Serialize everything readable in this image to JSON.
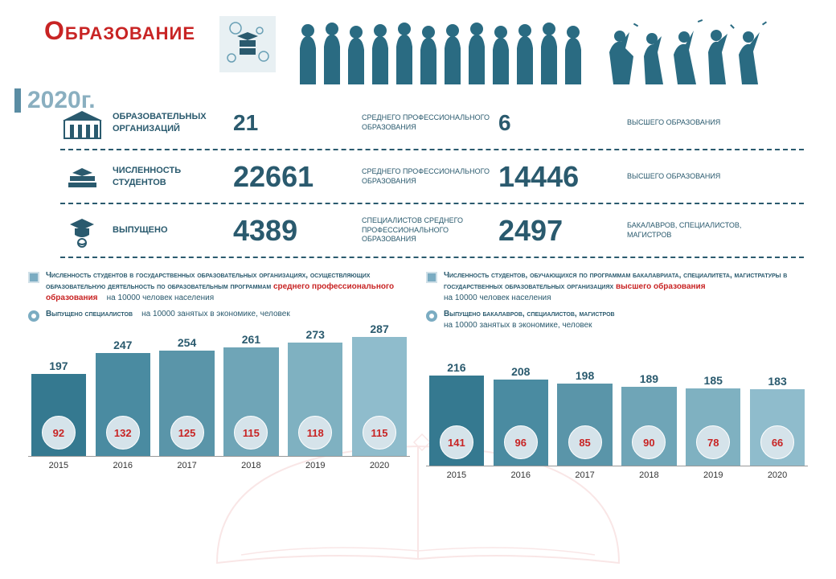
{
  "title": "Образование",
  "year": "2020г.",
  "colors": {
    "primary": "#2a5a6e",
    "accent": "#c82424",
    "light": "#8aafc0",
    "bar_dark": "#357990",
    "bar_mid": "#5a95a9",
    "bar_light": "#8fbccc",
    "circle_bg": "#d5e3ea",
    "background": "#ffffff"
  },
  "stats": [
    {
      "label": "ОБРАЗОВАТЕЛЬНЫХ ОРГАНИЗАЦИЙ",
      "left_value": "21",
      "left_desc": "СРЕДНЕГО ПРОФЕССИОНАЛЬНОГО ОБРАЗОВАНИЯ",
      "right_value": "6",
      "right_desc": "ВЫСШЕГО ОБРАЗОВАНИЯ"
    },
    {
      "label": "ЧИСЛЕННОСТЬ СТУДЕНТОВ",
      "left_value": "22661",
      "left_desc": "СРЕДНЕГО ПРОФЕССИОНАЛЬНОГО ОБРАЗОВАНИЯ",
      "right_value": "14446",
      "right_desc": "ВЫСШЕГО ОБРАЗОВАНИЯ"
    },
    {
      "label": "ВЫПУЩЕНО",
      "left_value": "4389",
      "left_desc": "СПЕЦИАЛИСТОВ СРЕДНЕГО ПРОФЕССИОНАЛЬНОГО ОБРАЗОВАНИЯ",
      "right_value": "2497",
      "right_desc": "БАКАЛАВРОВ, СПЕЦИАЛИСТОВ, МАГИСТРОВ"
    }
  ],
  "chart_left": {
    "type": "bar",
    "legend_bar_bold": "Численность студентов в государственных образовательных организациях, осуществляющих образовательную деятельность по образовательным программам",
    "legend_bar_red": "среднего профессионального образования",
    "legend_bar_tail": "на 10000 человек населения",
    "legend_circle_bold": "Выпущено специалистов",
    "legend_circle_tail": "на 10000 занятых в экономике, человек",
    "years": [
      "2015",
      "2016",
      "2017",
      "2018",
      "2019",
      "2020"
    ],
    "bar_values": [
      197,
      247,
      254,
      261,
      273,
      287
    ],
    "circle_values": [
      92,
      132,
      125,
      115,
      118,
      115
    ],
    "bar_colors": [
      "#357990",
      "#4a8ba1",
      "#5a95a9",
      "#6fa5b7",
      "#7fb1c1",
      "#8fbccc"
    ],
    "ylim": [
      0,
      300
    ]
  },
  "chart_right": {
    "type": "bar",
    "legend_bar_bold": "Численность студентов, обучающихся по программам бакалавриата, специалитета, магистратуры в государственных образовательных организациях",
    "legend_bar_red": "высшего образования",
    "legend_bar_tail": "на 10000 человек населения",
    "legend_circle_bold": "Выпущено бакалавров, специалистов, магистров",
    "legend_circle_tail": "на 10000 занятых в экономике, человек",
    "years": [
      "2015",
      "2016",
      "2017",
      "2018",
      "2019",
      "2020"
    ],
    "bar_values": [
      216,
      208,
      198,
      189,
      185,
      183
    ],
    "circle_values": [
      141,
      96,
      85,
      90,
      78,
      66
    ],
    "bar_colors": [
      "#357990",
      "#4a8ba1",
      "#5a95a9",
      "#6fa5b7",
      "#7fb1c1",
      "#8fbccc"
    ],
    "ylim": [
      0,
      300
    ]
  }
}
